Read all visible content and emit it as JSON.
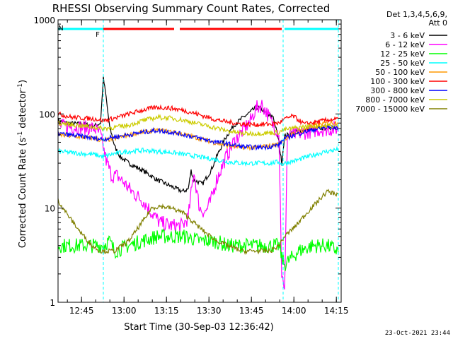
{
  "chart_data": {
    "type": "line",
    "title": "RHESSI Observing Summary Count Rates, Corrected",
    "xlabel": "Start Time (30-Sep-03 12:36:42)",
    "ylabel_main": "Corrected Count Rate (s",
    "ylabel_sup1": "-1",
    "ylabel_mid": " detector",
    "ylabel_sup2": "-1",
    "ylabel_end": ")",
    "y_scale": "log",
    "ylim": [
      1,
      1000
    ],
    "xlim_minutes": [
      0,
      100
    ],
    "y_ticks": [
      {
        "value": 1000,
        "label": "1000"
      },
      {
        "value": 100,
        "label": "100"
      },
      {
        "value": 10,
        "label": "10"
      },
      {
        "value": 1,
        "label": "1"
      }
    ],
    "x_ticks": [
      {
        "t": 8.3,
        "label": "12:45"
      },
      {
        "t": 23.3,
        "label": "13:00"
      },
      {
        "t": 38.3,
        "label": "13:15"
      },
      {
        "t": 53.3,
        "label": "13:30"
      },
      {
        "t": 68.3,
        "label": "13:45"
      },
      {
        "t": 83.3,
        "label": "14:00"
      },
      {
        "t": 98.3,
        "label": "14:15"
      }
    ],
    "legend_header": [
      "Det 1,3,4,5,6,9,",
      "Att 0"
    ],
    "legend_position": "right",
    "series": [
      {
        "name": "3 - 6 keV",
        "color": "#000000",
        "points": [
          [
            0,
            85
          ],
          [
            3,
            80
          ],
          [
            8,
            78
          ],
          [
            13,
            75
          ],
          [
            15,
            80
          ],
          [
            16,
            240
          ],
          [
            17,
            150
          ],
          [
            18,
            80
          ],
          [
            20,
            45
          ],
          [
            22,
            35
          ],
          [
            25,
            30
          ],
          [
            30,
            25
          ],
          [
            35,
            20
          ],
          [
            40,
            17
          ],
          [
            44,
            15
          ],
          [
            46,
            16
          ],
          [
            47,
            25
          ],
          [
            48,
            20
          ],
          [
            51,
            18
          ],
          [
            54,
            25
          ],
          [
            56,
            35
          ],
          [
            59,
            55
          ],
          [
            62,
            75
          ],
          [
            65,
            90
          ],
          [
            68,
            105
          ],
          [
            70,
            118
          ],
          [
            72,
            112
          ],
          [
            74,
            95
          ],
          [
            76,
            95
          ],
          [
            78,
            50
          ],
          [
            79,
            30
          ],
          [
            80,
            58
          ],
          [
            84,
            65
          ],
          [
            88,
            68
          ],
          [
            92,
            70
          ],
          [
            96,
            72
          ],
          [
            99,
            72
          ]
        ]
      },
      {
        "name": "6 - 12 keV",
        "color": "#ff00ff",
        "points": [
          [
            0,
            75
          ],
          [
            8,
            72
          ],
          [
            13,
            70
          ],
          [
            15,
            60
          ],
          [
            17,
            32
          ],
          [
            19,
            22
          ],
          [
            21,
            22
          ],
          [
            23,
            19
          ],
          [
            26,
            15
          ],
          [
            30,
            12
          ],
          [
            33,
            9
          ],
          [
            36,
            7
          ],
          [
            40,
            6.5
          ],
          [
            44,
            6.5
          ],
          [
            46,
            8
          ],
          [
            48,
            25
          ],
          [
            49,
            15
          ],
          [
            50,
            10
          ],
          [
            52,
            9
          ],
          [
            54,
            12
          ],
          [
            56,
            20
          ],
          [
            59,
            33
          ],
          [
            62,
            50
          ],
          [
            65,
            65
          ],
          [
            68,
            85
          ],
          [
            70,
            115
          ],
          [
            72,
            125
          ],
          [
            74,
            100
          ],
          [
            76,
            75
          ],
          [
            78,
            65
          ],
          [
            79,
            2
          ],
          [
            80,
            1.2
          ],
          [
            81,
            58
          ],
          [
            85,
            62
          ],
          [
            92,
            68
          ],
          [
            99,
            70
          ]
        ]
      },
      {
        "name": "12 - 25 keV",
        "color": "#00ff00",
        "points": [
          [
            0,
            4
          ],
          [
            8,
            4
          ],
          [
            13,
            4
          ],
          [
            16,
            4
          ],
          [
            18,
            4.5
          ],
          [
            20,
            3.5
          ],
          [
            25,
            4
          ],
          [
            30,
            4.5
          ],
          [
            35,
            5
          ],
          [
            40,
            5
          ],
          [
            45,
            5
          ],
          [
            50,
            4.5
          ],
          [
            55,
            4.5
          ],
          [
            60,
            4
          ],
          [
            65,
            4
          ],
          [
            70,
            4
          ],
          [
            75,
            4
          ],
          [
            78,
            4
          ],
          [
            79,
            3
          ],
          [
            80,
            2.5
          ],
          [
            85,
            3.5
          ],
          [
            90,
            4
          ],
          [
            95,
            4
          ],
          [
            99,
            3.5
          ]
        ]
      },
      {
        "name": "25 - 50 keV",
        "color": "#00ffff",
        "points": [
          [
            0,
            40
          ],
          [
            8,
            38
          ],
          [
            13,
            37
          ],
          [
            16,
            35
          ],
          [
            20,
            38
          ],
          [
            25,
            40
          ],
          [
            30,
            41
          ],
          [
            35,
            40
          ],
          [
            40,
            39
          ],
          [
            45,
            37
          ],
          [
            50,
            35
          ],
          [
            55,
            33
          ],
          [
            60,
            31
          ],
          [
            65,
            30
          ],
          [
            70,
            30
          ],
          [
            75,
            30
          ],
          [
            78,
            31
          ],
          [
            79,
            29
          ],
          [
            80,
            30
          ],
          [
            84,
            32
          ],
          [
            88,
            35
          ],
          [
            92,
            38
          ],
          [
            95,
            40
          ],
          [
            99,
            42
          ]
        ]
      },
      {
        "name": "50 - 100 keV",
        "color": "#ff9900",
        "points": [
          [
            0,
            60
          ],
          [
            8,
            57
          ],
          [
            13,
            55
          ],
          [
            16,
            52
          ],
          [
            20,
            55
          ],
          [
            25,
            60
          ],
          [
            30,
            64
          ],
          [
            35,
            67
          ],
          [
            40,
            65
          ],
          [
            45,
            60
          ],
          [
            50,
            55
          ],
          [
            55,
            50
          ],
          [
            60,
            46
          ],
          [
            65,
            44
          ],
          [
            70,
            44
          ],
          [
            75,
            46
          ],
          [
            78,
            48
          ],
          [
            80,
            55
          ],
          [
            85,
            65
          ],
          [
            90,
            74
          ],
          [
            95,
            80
          ],
          [
            99,
            82
          ]
        ]
      },
      {
        "name": "100 - 300 keV",
        "color": "#ff0000",
        "points": [
          [
            0,
            100
          ],
          [
            5,
            92
          ],
          [
            10,
            90
          ],
          [
            14,
            88
          ],
          [
            16,
            85
          ],
          [
            20,
            90
          ],
          [
            25,
            100
          ],
          [
            30,
            110
          ],
          [
            35,
            118
          ],
          [
            40,
            115
          ],
          [
            45,
            108
          ],
          [
            50,
            98
          ],
          [
            55,
            88
          ],
          [
            60,
            82
          ],
          [
            65,
            78
          ],
          [
            70,
            77
          ],
          [
            75,
            78
          ],
          [
            78,
            80
          ],
          [
            80,
            88
          ],
          [
            83,
            95
          ],
          [
            87,
            78
          ],
          [
            92,
            83
          ],
          [
            96,
            87
          ],
          [
            99,
            88
          ]
        ]
      },
      {
        "name": "300 - 800 keV",
        "color": "#0000ff",
        "points": [
          [
            0,
            62
          ],
          [
            8,
            58
          ],
          [
            13,
            55
          ],
          [
            16,
            54
          ],
          [
            20,
            57
          ],
          [
            25,
            60
          ],
          [
            30,
            64
          ],
          [
            35,
            67
          ],
          [
            40,
            64
          ],
          [
            45,
            60
          ],
          [
            50,
            55
          ],
          [
            55,
            51
          ],
          [
            60,
            48
          ],
          [
            65,
            45
          ],
          [
            70,
            44
          ],
          [
            75,
            45
          ],
          [
            78,
            47
          ],
          [
            80,
            55
          ],
          [
            85,
            62
          ],
          [
            90,
            68
          ],
          [
            95,
            72
          ],
          [
            99,
            72
          ]
        ]
      },
      {
        "name": "800 - 7000 keV",
        "color": "#cccc00",
        "points": [
          [
            0,
            80
          ],
          [
            8,
            75
          ],
          [
            13,
            72
          ],
          [
            16,
            70
          ],
          [
            20,
            72
          ],
          [
            25,
            76
          ],
          [
            30,
            85
          ],
          [
            35,
            92
          ],
          [
            40,
            90
          ],
          [
            45,
            85
          ],
          [
            50,
            78
          ],
          [
            55,
            72
          ],
          [
            60,
            66
          ],
          [
            65,
            62
          ],
          [
            70,
            62
          ],
          [
            75,
            63
          ],
          [
            78,
            64
          ],
          [
            80,
            68
          ],
          [
            85,
            72
          ],
          [
            90,
            74
          ],
          [
            95,
            75
          ],
          [
            99,
            74
          ]
        ]
      },
      {
        "name": "7000 - 15000 keV",
        "color": "#808000",
        "points": [
          [
            0,
            12
          ],
          [
            4,
            8
          ],
          [
            8,
            5.5
          ],
          [
            12,
            4
          ],
          [
            15,
            3.5
          ],
          [
            20,
            3.5
          ],
          [
            25,
            4.5
          ],
          [
            28,
            6
          ],
          [
            31,
            8
          ],
          [
            33,
            10
          ],
          [
            36,
            10.5
          ],
          [
            40,
            10
          ],
          [
            44,
            9
          ],
          [
            48,
            7
          ],
          [
            52,
            5.5
          ],
          [
            56,
            4.5
          ],
          [
            60,
            4
          ],
          [
            65,
            3.5
          ],
          [
            70,
            3.5
          ],
          [
            75,
            3.5
          ],
          [
            78,
            4
          ],
          [
            80,
            5
          ],
          [
            84,
            6.5
          ],
          [
            88,
            9
          ],
          [
            92,
            12
          ],
          [
            95,
            15
          ],
          [
            99,
            14
          ]
        ]
      }
    ],
    "markers": [
      {
        "label": "N",
        "t_start": 0,
        "t_end": 16,
        "color": "#00ffff"
      },
      {
        "label": "F",
        "t_start": 16,
        "t_end": 41,
        "color": "#ff0000"
      },
      {
        "label": "",
        "t_start": 43,
        "t_end": 79,
        "color": "#ff0000"
      },
      {
        "label": "",
        "t_start": 80,
        "t_end": 99,
        "color": "#00ffff"
      }
    ],
    "vertical_lines": [
      16,
      79.5,
      99
    ],
    "footer_timestamp": "23-Oct-2021 23:44"
  }
}
